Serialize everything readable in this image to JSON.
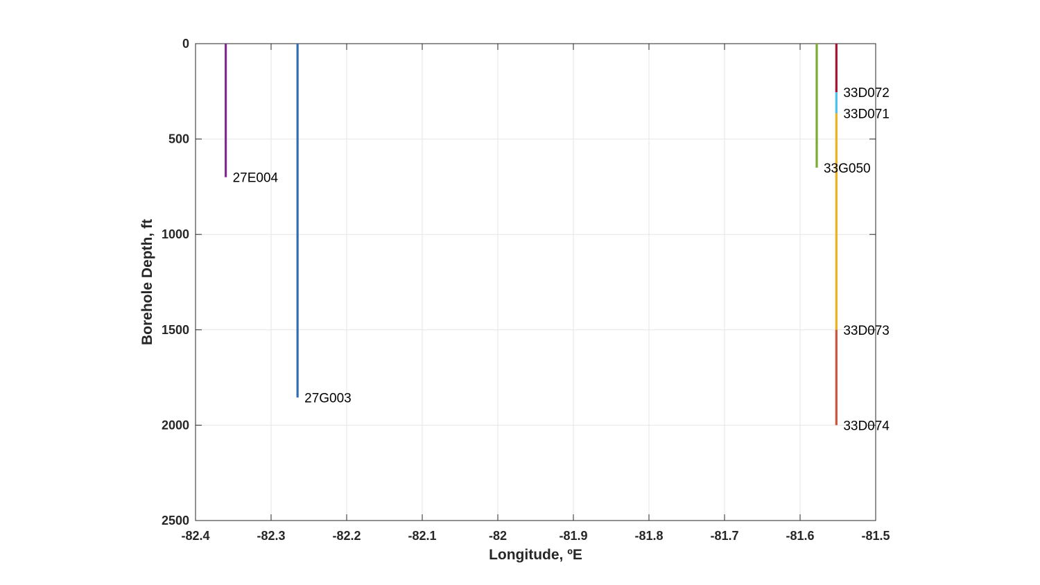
{
  "chart_data": {
    "type": "line",
    "title": "",
    "xlabel": "Longitude, ºE",
    "ylabel": "Borehole Depth, ft",
    "xlim": [
      -82.4,
      -81.5
    ],
    "ylim": [
      0,
      2500
    ],
    "y_reversed": true,
    "grid": true,
    "legend": "none",
    "x_ticks": [
      -82.4,
      -82.3,
      -82.2,
      -82.1,
      -82,
      -81.9,
      -81.8,
      -81.7,
      -81.6,
      -81.5
    ],
    "x_tick_labels": [
      "-82.4",
      "-82.3",
      "-82.2",
      "-82.1",
      "-82",
      "-81.9",
      "-81.8",
      "-81.7",
      "-81.6",
      "-81.5"
    ],
    "y_ticks": [
      0,
      500,
      1000,
      1500,
      2000,
      2500
    ],
    "y_tick_labels": [
      "0",
      "500",
      "1000",
      "1500",
      "2000",
      "2500"
    ],
    "series": [
      {
        "name": "27E004",
        "x": -82.36,
        "depth_top": 0,
        "depth_bottom": 700,
        "color": "#7E2F8E"
      },
      {
        "name": "27G003",
        "x": -82.265,
        "depth_top": 0,
        "depth_bottom": 1855,
        "color": "#2F6DB5"
      },
      {
        "name": "33G050",
        "x": -81.578,
        "depth_top": 0,
        "depth_bottom": 650,
        "color": "#77AC30"
      },
      {
        "name": "33D072",
        "x": -81.552,
        "depth_top": 0,
        "depth_bottom": 255,
        "color": "#A2142F"
      },
      {
        "name": "33D071",
        "x": -81.552,
        "depth_top": 255,
        "depth_bottom": 365,
        "color": "#4DBEEE"
      },
      {
        "name": "33D073",
        "x": -81.552,
        "depth_top": 365,
        "depth_bottom": 1500,
        "color": "#EDB120"
      },
      {
        "name": "33D074",
        "x": -81.552,
        "depth_top": 1500,
        "depth_bottom": 2000,
        "color": "#C8553D"
      }
    ],
    "annotations": [
      "27E004",
      "27G003",
      "33G050",
      "33D072",
      "33D071",
      "33D073",
      "33D074"
    ]
  }
}
